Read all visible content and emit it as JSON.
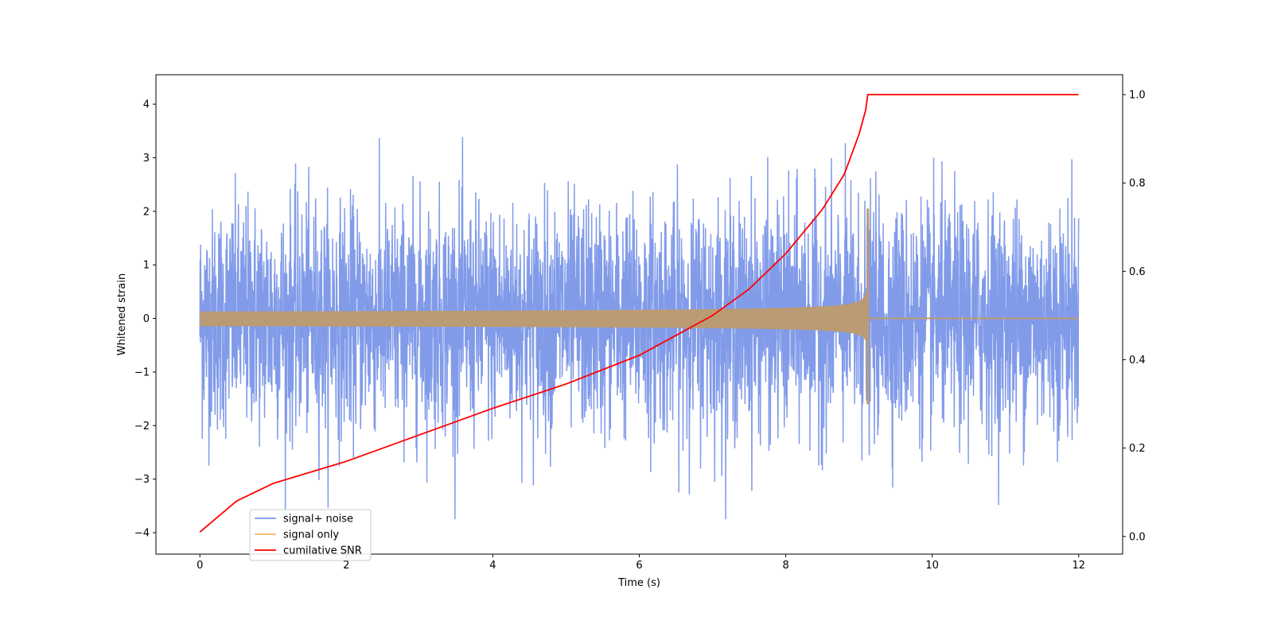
{
  "chart_data": {
    "type": "line",
    "title": "",
    "xlabel": "Time (s)",
    "ylabel": "Whitened strain",
    "y2label": "",
    "xlim": [
      -0.6,
      12.6
    ],
    "ylim": [
      -4.4,
      4.55
    ],
    "y2lim": [
      -0.04,
      1.045
    ],
    "xticks": [
      0,
      2,
      4,
      6,
      8,
      10,
      12
    ],
    "yticks": [
      -4,
      -3,
      -2,
      -1,
      0,
      1,
      2,
      3,
      4
    ],
    "y2ticks": [
      0.0,
      0.2,
      0.4,
      0.6,
      0.8,
      1.0
    ],
    "ytick_labels": [
      "−4",
      "−3",
      "−2",
      "−1",
      "0",
      "1",
      "2",
      "3",
      "4"
    ],
    "y2tick_labels": [
      "0.0",
      "0.2",
      "0.4",
      "0.6",
      "0.8",
      "1.0"
    ],
    "xtick_labels": [
      "0",
      "2",
      "4",
      "6",
      "8",
      "10",
      "12"
    ],
    "grid": false,
    "legend_position": "bottom-left",
    "series": [
      {
        "name": "signal+ noise",
        "color": "#7a96e8",
        "axis": "left",
        "description_values": {
          "t_start": 0,
          "t_end": 12,
          "typical_peak_range": [
            -3.6,
            4.1
          ],
          "noise_sigma": 1.0
        }
      },
      {
        "name": "signal only",
        "color": "#f5b86c",
        "axis": "left",
        "description_values": {
          "t_start": 0,
          "t_end": 9.12,
          "amplitude_at_t0": 0.1,
          "amplitude_at_merger": 2.0,
          "merger_time": 9.12
        }
      },
      {
        "name": "cumilative SNR",
        "color": "#ff0000",
        "axis": "right",
        "x": [
          0,
          0.5,
          1,
          2,
          3,
          4,
          5,
          6,
          7,
          7.5,
          8,
          8.5,
          8.8,
          9.0,
          9.1,
          9.12,
          12
        ],
        "values": [
          0.01,
          0.08,
          0.12,
          0.17,
          0.23,
          0.29,
          0.345,
          0.41,
          0.5,
          0.56,
          0.64,
          0.74,
          0.82,
          0.91,
          0.97,
          1.0,
          1.0
        ]
      }
    ]
  }
}
